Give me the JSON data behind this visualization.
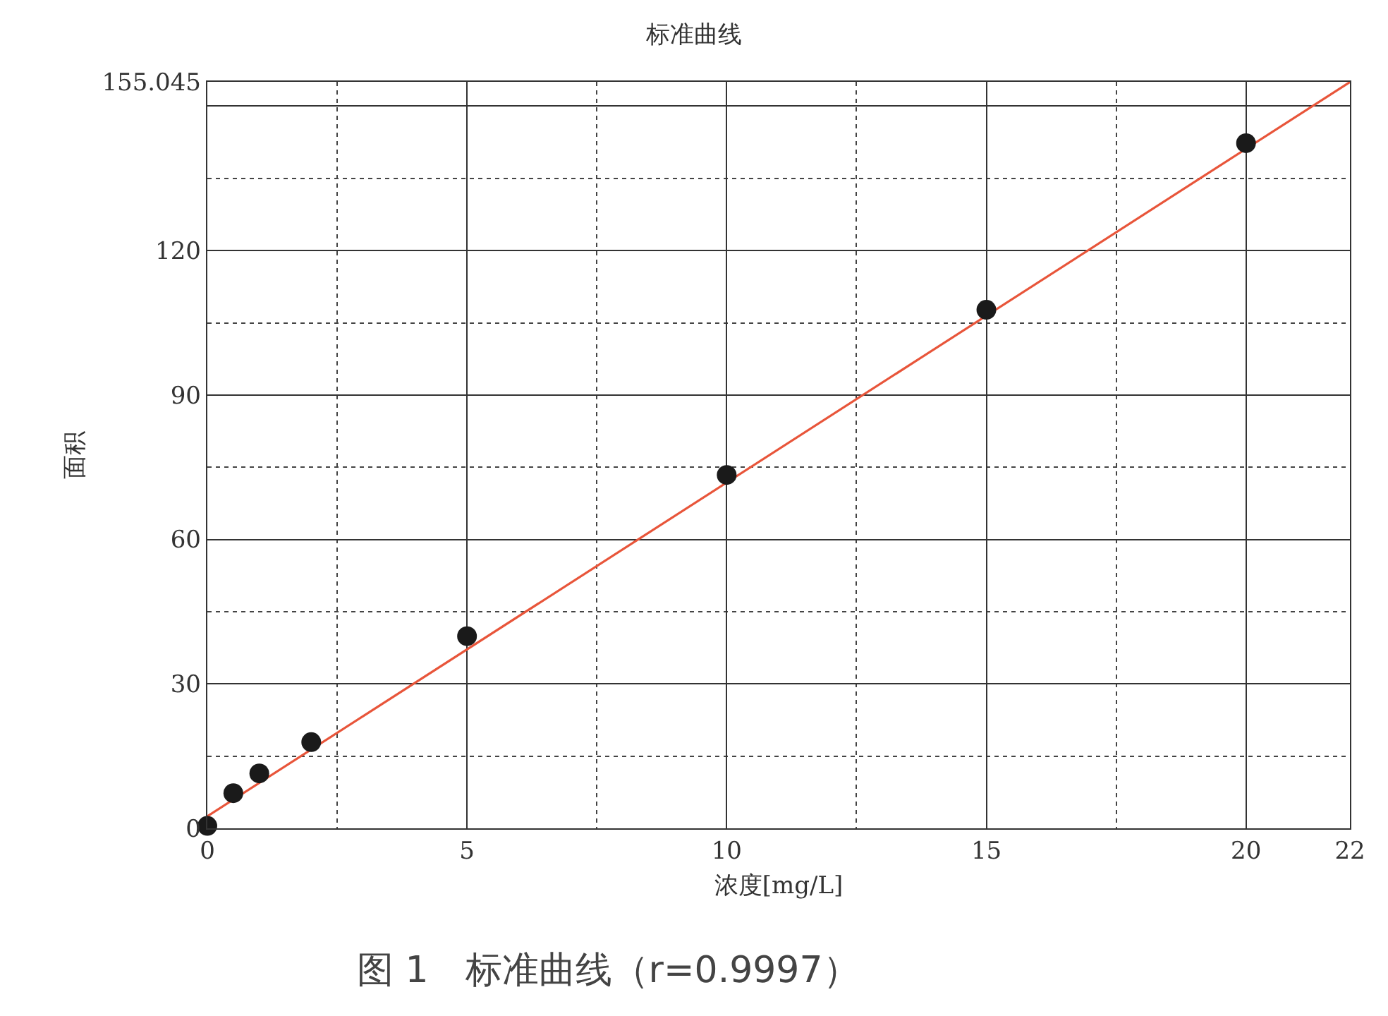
{
  "chart_data": {
    "type": "scatter",
    "title": "标准曲线",
    "xlabel": "浓度[mg/L]",
    "ylabel": "面积",
    "x": [
      0,
      0.5,
      1,
      2,
      5,
      10,
      15,
      20
    ],
    "series": [
      {
        "marker": "circle",
        "color": "#1a1a1a",
        "values": [
          0.5,
          7.3,
          11.4,
          17.9,
          39.9,
          73.4,
          107.7,
          142.3
        ]
      },
      {
        "type": "line",
        "color": "#e8553a",
        "x": [
          0,
          22
        ],
        "values": [
          2.5,
          155
        ]
      }
    ],
    "xlim": [
      0,
      22
    ],
    "xticks": [
      0,
      5,
      10,
      15,
      20,
      22
    ],
    "ylim": [
      0,
      155.045
    ],
    "yticks": [
      0,
      30,
      60,
      90,
      120,
      {
        "value": 150,
        "label": null
      },
      155.045
    ],
    "grid": true,
    "legend": false,
    "annotations": [
      "图 1　标准曲线（r=0.9997）"
    ]
  }
}
